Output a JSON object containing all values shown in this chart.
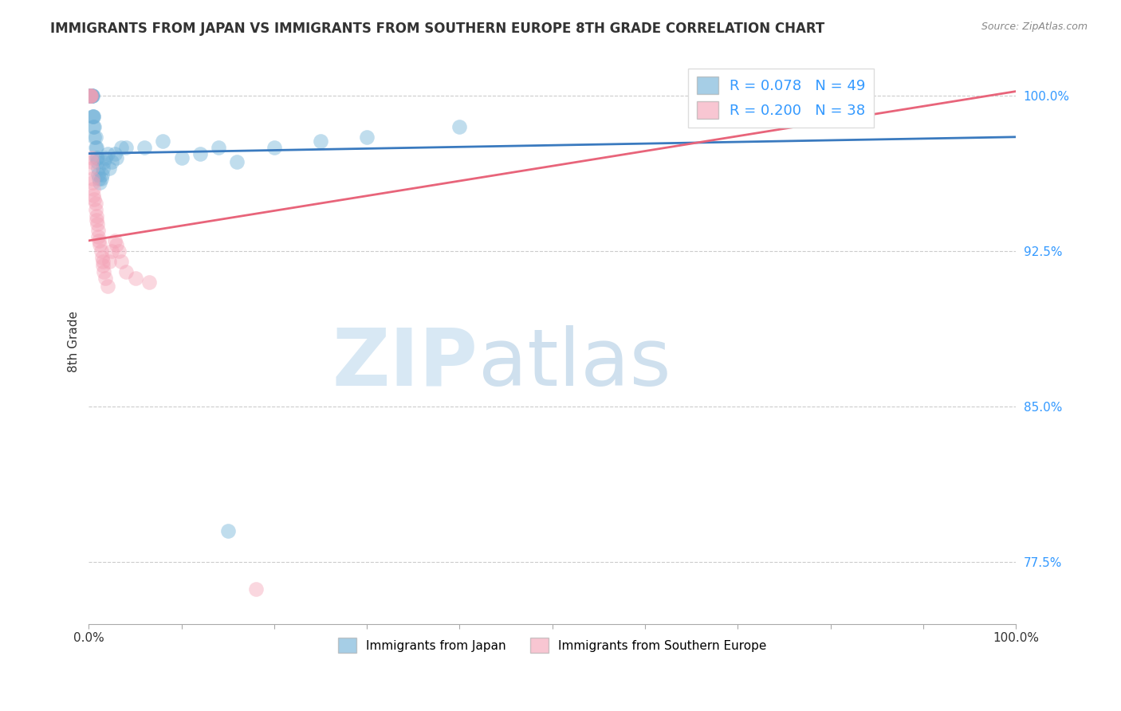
{
  "title": "IMMIGRANTS FROM JAPAN VS IMMIGRANTS FROM SOUTHERN EUROPE 8TH GRADE CORRELATION CHART",
  "source": "Source: ZipAtlas.com",
  "ylabel": "8th Grade",
  "xlim": [
    0.0,
    1.0
  ],
  "ylim": [
    0.745,
    1.018
  ],
  "yticks": [
    0.775,
    0.85,
    0.925,
    1.0
  ],
  "ytick_labels": [
    "77.5%",
    "85.0%",
    "92.5%",
    "100.0%"
  ],
  "xtick_labels": [
    "0.0%",
    "100.0%"
  ],
  "legend_r_japan": "R = 0.078",
  "legend_n_japan": "N = 49",
  "legend_r_south": "R = 0.200",
  "legend_n_south": "N = 38",
  "japan_color": "#6baed6",
  "south_color": "#f4a0b5",
  "japan_line_color": "#3a7abf",
  "south_line_color": "#e8647a",
  "japan_trend_x": [
    0.0,
    1.0
  ],
  "japan_trend_y": [
    0.972,
    0.98
  ],
  "south_trend_x": [
    0.0,
    1.0
  ],
  "south_trend_y": [
    0.93,
    1.002
  ],
  "japan_points_x": [
    0.001,
    0.001,
    0.001,
    0.002,
    0.002,
    0.002,
    0.003,
    0.003,
    0.004,
    0.004,
    0.004,
    0.005,
    0.005,
    0.005,
    0.006,
    0.006,
    0.007,
    0.007,
    0.008,
    0.008,
    0.009,
    0.009,
    0.01,
    0.01,
    0.011,
    0.012,
    0.013,
    0.014,
    0.015,
    0.016,
    0.018,
    0.02,
    0.022,
    0.025,
    0.028,
    0.03,
    0.035,
    0.04,
    0.06,
    0.08,
    0.1,
    0.12,
    0.14,
    0.16,
    0.2,
    0.25,
    0.3,
    0.4,
    0.15
  ],
  "japan_points_y": [
    1.0,
    1.0,
    1.0,
    1.0,
    1.0,
    1.0,
    1.0,
    1.0,
    1.0,
    1.0,
    0.99,
    0.99,
    0.99,
    0.985,
    0.985,
    0.98,
    0.98,
    0.975,
    0.975,
    0.97,
    0.97,
    0.968,
    0.965,
    0.962,
    0.96,
    0.958,
    0.96,
    0.962,
    0.965,
    0.968,
    0.97,
    0.972,
    0.965,
    0.968,
    0.972,
    0.97,
    0.975,
    0.975,
    0.975,
    0.978,
    0.97,
    0.972,
    0.975,
    0.968,
    0.975,
    0.978,
    0.98,
    0.985,
    0.79
  ],
  "south_points_x": [
    0.001,
    0.001,
    0.002,
    0.002,
    0.003,
    0.003,
    0.003,
    0.004,
    0.004,
    0.005,
    0.005,
    0.006,
    0.007,
    0.007,
    0.008,
    0.008,
    0.009,
    0.01,
    0.01,
    0.011,
    0.012,
    0.013,
    0.014,
    0.015,
    0.015,
    0.016,
    0.018,
    0.02,
    0.022,
    0.025,
    0.028,
    0.03,
    0.032,
    0.035,
    0.04,
    0.05,
    0.065,
    0.18
  ],
  "south_points_y": [
    1.0,
    1.0,
    1.0,
    1.0,
    0.97,
    0.968,
    0.965,
    0.96,
    0.958,
    0.955,
    0.952,
    0.95,
    0.948,
    0.945,
    0.942,
    0.94,
    0.938,
    0.935,
    0.932,
    0.93,
    0.928,
    0.925,
    0.922,
    0.92,
    0.918,
    0.915,
    0.912,
    0.908,
    0.92,
    0.925,
    0.93,
    0.928,
    0.925,
    0.92,
    0.915,
    0.912,
    0.91,
    0.762
  ],
  "background_color": "#ffffff",
  "grid_color": "#cccccc"
}
